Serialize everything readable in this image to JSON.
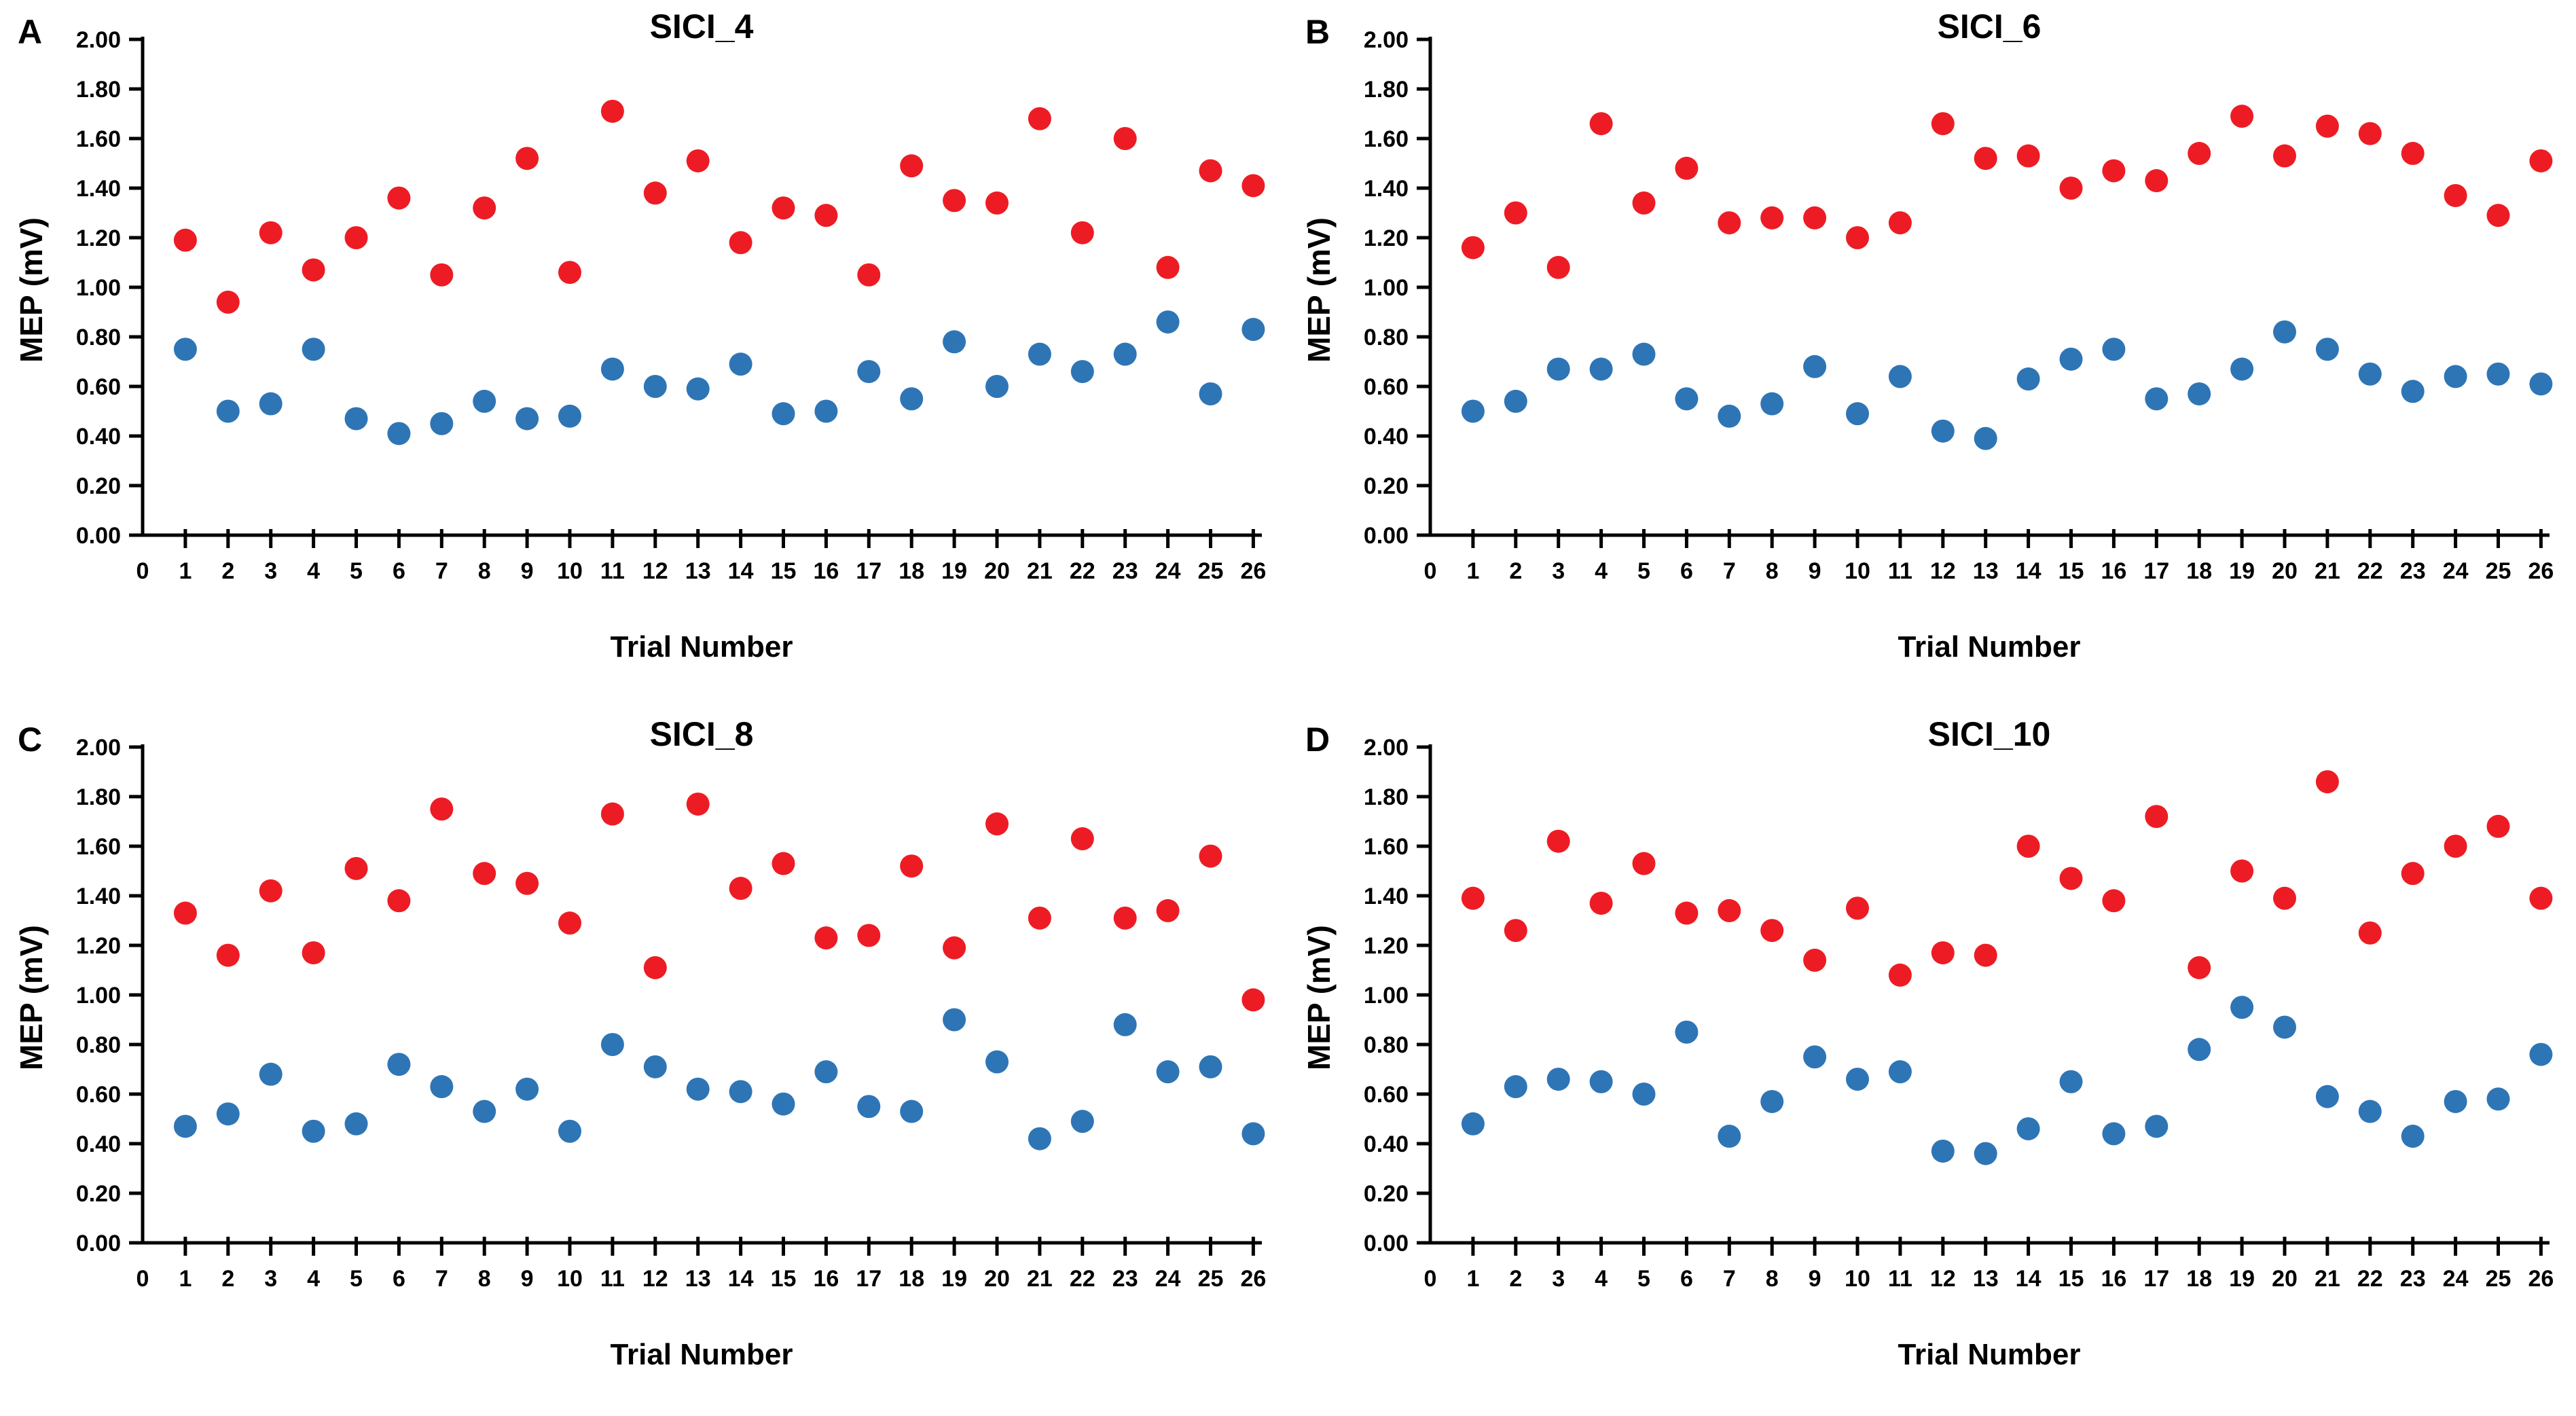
{
  "figure": {
    "background": "#ffffff",
    "axis_color": "#000000",
    "text_color": "#000000"
  },
  "chart_data": [
    {
      "type": "scatter",
      "panel_label": "A",
      "title": "SICI_4",
      "xlabel": "Trial Number",
      "ylabel": "MEP (mV)",
      "ylim": [
        0.0,
        2.0
      ],
      "grid": false,
      "legend": "none",
      "y_ticks": [
        "0.00",
        "0.20",
        "0.40",
        "0.60",
        "0.80",
        "1.00",
        "1.20",
        "1.40",
        "1.60",
        "1.80",
        "2.00"
      ],
      "x_ticks": [
        0,
        1,
        2,
        3,
        4,
        5,
        6,
        7,
        8,
        9,
        10,
        11,
        12,
        13,
        14,
        15,
        16,
        17,
        18,
        19,
        20,
        21,
        22,
        23,
        24,
        25,
        26
      ],
      "x": [
        1,
        2,
        3,
        4,
        5,
        6,
        7,
        8,
        9,
        10,
        11,
        12,
        13,
        14,
        15,
        16,
        17,
        18,
        19,
        20,
        21,
        22,
        23,
        24,
        25,
        26
      ],
      "series": [
        {
          "name": "red",
          "color": "#ed1c24",
          "values": [
            1.19,
            0.94,
            1.22,
            1.07,
            1.2,
            1.36,
            1.05,
            1.32,
            1.52,
            1.06,
            1.71,
            1.38,
            1.51,
            1.18,
            1.32,
            1.29,
            1.05,
            1.49,
            1.35,
            1.34,
            1.68,
            1.22,
            1.6,
            1.08,
            1.47,
            1.41
          ]
        },
        {
          "name": "blue",
          "color": "#2e75b6",
          "values": [
            0.75,
            0.5,
            0.53,
            0.75,
            0.47,
            0.41,
            0.45,
            0.54,
            0.47,
            0.48,
            0.67,
            0.6,
            0.59,
            0.69,
            0.49,
            0.5,
            0.66,
            0.55,
            0.78,
            0.6,
            0.73,
            0.66,
            0.73,
            0.86,
            0.57,
            0.83
          ]
        }
      ]
    },
    {
      "type": "scatter",
      "panel_label": "B",
      "title": "SICI_6",
      "xlabel": "Trial Number",
      "ylabel": "MEP (mV)",
      "ylim": [
        0.0,
        2.0
      ],
      "grid": false,
      "legend": "none",
      "y_ticks": [
        "0.00",
        "0.20",
        "0.40",
        "0.60",
        "0.80",
        "1.00",
        "1.20",
        "1.40",
        "1.60",
        "1.80",
        "2.00"
      ],
      "x_ticks": [
        0,
        1,
        2,
        3,
        4,
        5,
        6,
        7,
        8,
        9,
        10,
        11,
        12,
        13,
        14,
        15,
        16,
        17,
        18,
        19,
        20,
        21,
        22,
        23,
        24,
        25,
        26
      ],
      "x": [
        1,
        2,
        3,
        4,
        5,
        6,
        7,
        8,
        9,
        10,
        11,
        12,
        13,
        14,
        15,
        16,
        17,
        18,
        19,
        20,
        21,
        22,
        23,
        24,
        25,
        26
      ],
      "series": [
        {
          "name": "red",
          "color": "#ed1c24",
          "values": [
            1.16,
            1.3,
            1.08,
            1.66,
            1.34,
            1.48,
            1.26,
            1.28,
            1.28,
            1.2,
            1.26,
            1.66,
            1.52,
            1.53,
            1.4,
            1.47,
            1.43,
            1.54,
            1.69,
            1.53,
            1.65,
            1.62,
            1.54,
            1.37,
            1.29,
            1.51
          ]
        },
        {
          "name": "blue",
          "color": "#2e75b6",
          "values": [
            0.5,
            0.54,
            0.67,
            0.67,
            0.73,
            0.55,
            0.48,
            0.53,
            0.68,
            0.49,
            0.64,
            0.42,
            0.39,
            0.63,
            0.71,
            0.75,
            0.55,
            0.57,
            0.67,
            0.82,
            0.75,
            0.65,
            0.58,
            0.64,
            0.65,
            0.61
          ]
        }
      ]
    },
    {
      "type": "scatter",
      "panel_label": "C",
      "title": "SICI_8",
      "xlabel": "Trial Number",
      "ylabel": "MEP (mV)",
      "ylim": [
        0.0,
        2.0
      ],
      "grid": false,
      "legend": "none",
      "y_ticks": [
        "0.00",
        "0.20",
        "0.40",
        "0.60",
        "0.80",
        "1.00",
        "1.20",
        "1.40",
        "1.60",
        "1.80",
        "2.00"
      ],
      "x_ticks": [
        0,
        1,
        2,
        3,
        4,
        5,
        6,
        7,
        8,
        9,
        10,
        11,
        12,
        13,
        14,
        15,
        16,
        17,
        18,
        19,
        20,
        21,
        22,
        23,
        24,
        25,
        26
      ],
      "x": [
        1,
        2,
        3,
        4,
        5,
        6,
        7,
        8,
        9,
        10,
        11,
        12,
        13,
        14,
        15,
        16,
        17,
        18,
        19,
        20,
        21,
        22,
        23,
        24,
        25,
        26
      ],
      "series": [
        {
          "name": "red",
          "color": "#ed1c24",
          "values": [
            1.33,
            1.16,
            1.42,
            1.17,
            1.51,
            1.38,
            1.75,
            1.49,
            1.45,
            1.29,
            1.73,
            1.11,
            1.77,
            1.43,
            1.53,
            1.23,
            1.24,
            1.52,
            1.19,
            1.69,
            1.31,
            1.63,
            1.31,
            1.34,
            1.56,
            0.98
          ]
        },
        {
          "name": "blue",
          "color": "#2e75b6",
          "values": [
            0.47,
            0.52,
            0.68,
            0.45,
            0.48,
            0.72,
            0.63,
            0.53,
            0.62,
            0.45,
            0.8,
            0.71,
            0.62,
            0.61,
            0.56,
            0.69,
            0.55,
            0.53,
            0.9,
            0.73,
            0.42,
            0.49,
            0.88,
            0.69,
            0.71,
            0.44
          ]
        }
      ]
    },
    {
      "type": "scatter",
      "panel_label": "D",
      "title": "SICI_10",
      "xlabel": "Trial Number",
      "ylabel": "MEP (mV)",
      "ylim": [
        0.0,
        2.0
      ],
      "grid": false,
      "legend": "none",
      "y_ticks": [
        "0.00",
        "0.20",
        "0.40",
        "0.60",
        "0.80",
        "1.00",
        "1.20",
        "1.40",
        "1.60",
        "1.80",
        "2.00"
      ],
      "x_ticks": [
        0,
        1,
        2,
        3,
        4,
        5,
        6,
        7,
        8,
        9,
        10,
        11,
        12,
        13,
        14,
        15,
        16,
        17,
        18,
        19,
        20,
        21,
        22,
        23,
        24,
        25,
        26
      ],
      "x": [
        1,
        2,
        3,
        4,
        5,
        6,
        7,
        8,
        9,
        10,
        11,
        12,
        13,
        14,
        15,
        16,
        17,
        18,
        19,
        20,
        21,
        22,
        23,
        24,
        25,
        26
      ],
      "series": [
        {
          "name": "red",
          "color": "#ed1c24",
          "values": [
            1.39,
            1.26,
            1.62,
            1.37,
            1.53,
            1.33,
            1.34,
            1.26,
            1.14,
            1.35,
            1.08,
            1.17,
            1.16,
            1.6,
            1.47,
            1.38,
            1.72,
            1.11,
            1.5,
            1.39,
            1.86,
            1.25,
            1.49,
            1.6,
            1.68,
            1.39
          ]
        },
        {
          "name": "blue",
          "color": "#2e75b6",
          "values": [
            0.48,
            0.63,
            0.66,
            0.65,
            0.6,
            0.85,
            0.43,
            0.57,
            0.75,
            0.66,
            0.69,
            0.37,
            0.36,
            0.46,
            0.65,
            0.44,
            0.47,
            0.78,
            0.95,
            0.87,
            0.59,
            0.53,
            0.43,
            0.57,
            0.58,
            0.76
          ]
        }
      ]
    }
  ]
}
